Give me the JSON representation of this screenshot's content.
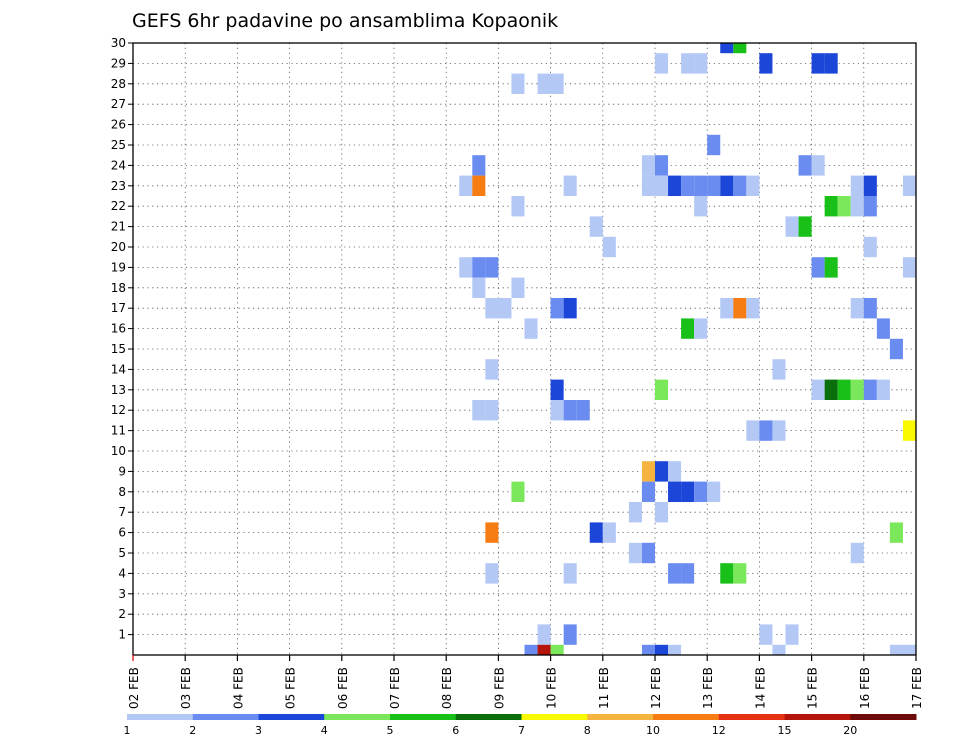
{
  "chart_data": {
    "type": "heatmap",
    "title": "GEFS 6hr padavine po ansamblima Kopaonik",
    "xlabel": "",
    "ylabel": "",
    "x_tick_labels": [
      "02 FEB",
      "03 FEB",
      "04 FEB",
      "05 FEB",
      "06 FEB",
      "07 FEB",
      "08 FEB",
      "09 FEB",
      "10 FEB",
      "11 FEB",
      "12 FEB",
      "13 FEB",
      "14 FEB",
      "15 FEB",
      "16 FEB",
      "17 FEB"
    ],
    "y_tick_labels": [
      "1",
      "2",
      "3",
      "4",
      "5",
      "6",
      "7",
      "8",
      "9",
      "10",
      "11",
      "12",
      "13",
      "14",
      "15",
      "16",
      "17",
      "18",
      "19",
      "20",
      "21",
      "22",
      "23",
      "24",
      "25",
      "26",
      "27",
      "28",
      "29",
      "30"
    ],
    "xlim": [
      0,
      60
    ],
    "ylim": [
      0,
      30
    ],
    "grid": true,
    "legend_position": "bottom",
    "legend": {
      "labels": [
        "1",
        "2",
        "3",
        "4",
        "5",
        "6",
        "7",
        "8",
        "10",
        "12",
        "15",
        "20"
      ],
      "colors": [
        "#b4c8f5",
        "#6a8cf0",
        "#1c46d8",
        "#7ae85a",
        "#18c018",
        "#0a6e0a",
        "#f8f800",
        "#f5b440",
        "#f57d14",
        "#e63214",
        "#b4140a",
        "#6e0a0a"
      ]
    },
    "cells": [
      {
        "x": 45,
        "y": 30,
        "v": 3
      },
      {
        "x": 46,
        "y": 30,
        "v": 5
      },
      {
        "x": 40,
        "y": 29,
        "v": 1
      },
      {
        "x": 42,
        "y": 29,
        "v": 1
      },
      {
        "x": 43,
        "y": 29,
        "v": 1
      },
      {
        "x": 48,
        "y": 29,
        "v": 3
      },
      {
        "x": 52,
        "y": 29,
        "v": 3
      },
      {
        "x": 53,
        "y": 29,
        "v": 3
      },
      {
        "x": 29,
        "y": 28,
        "v": 1
      },
      {
        "x": 31,
        "y": 28,
        "v": 1
      },
      {
        "x": 32,
        "y": 28,
        "v": 1
      },
      {
        "x": 44,
        "y": 25,
        "v": 2
      },
      {
        "x": 26,
        "y": 24,
        "v": 2
      },
      {
        "x": 39,
        "y": 24,
        "v": 1
      },
      {
        "x": 40,
        "y": 24,
        "v": 2
      },
      {
        "x": 51,
        "y": 24,
        "v": 2
      },
      {
        "x": 52,
        "y": 24,
        "v": 1
      },
      {
        "x": 25,
        "y": 23,
        "v": 1
      },
      {
        "x": 26,
        "y": 23,
        "v": 10
      },
      {
        "x": 33,
        "y": 23,
        "v": 1
      },
      {
        "x": 39,
        "y": 23,
        "v": 1
      },
      {
        "x": 40,
        "y": 23,
        "v": 1
      },
      {
        "x": 41,
        "y": 23,
        "v": 3
      },
      {
        "x": 42,
        "y": 23,
        "v": 2
      },
      {
        "x": 43,
        "y": 23,
        "v": 2
      },
      {
        "x": 44,
        "y": 23,
        "v": 2
      },
      {
        "x": 45,
        "y": 23,
        "v": 3
      },
      {
        "x": 46,
        "y": 23,
        "v": 2
      },
      {
        "x": 47,
        "y": 23,
        "v": 1
      },
      {
        "x": 55,
        "y": 23,
        "v": 1
      },
      {
        "x": 56,
        "y": 23,
        "v": 3
      },
      {
        "x": 59,
        "y": 23,
        "v": 1
      },
      {
        "x": 29,
        "y": 22,
        "v": 1
      },
      {
        "x": 43,
        "y": 22,
        "v": 1
      },
      {
        "x": 53,
        "y": 22,
        "v": 5
      },
      {
        "x": 54,
        "y": 22,
        "v": 4
      },
      {
        "x": 55,
        "y": 22,
        "v": 1
      },
      {
        "x": 56,
        "y": 22,
        "v": 2
      },
      {
        "x": 35,
        "y": 21,
        "v": 1
      },
      {
        "x": 50,
        "y": 21,
        "v": 1
      },
      {
        "x": 51,
        "y": 21,
        "v": 5
      },
      {
        "x": 36,
        "y": 20,
        "v": 1
      },
      {
        "x": 56,
        "y": 20,
        "v": 1
      },
      {
        "x": 25,
        "y": 19,
        "v": 1
      },
      {
        "x": 26,
        "y": 19,
        "v": 2
      },
      {
        "x": 27,
        "y": 19,
        "v": 2
      },
      {
        "x": 52,
        "y": 19,
        "v": 2
      },
      {
        "x": 53,
        "y": 19,
        "v": 5
      },
      {
        "x": 59,
        "y": 19,
        "v": 1
      },
      {
        "x": 26,
        "y": 18,
        "v": 1
      },
      {
        "x": 29,
        "y": 18,
        "v": 1
      },
      {
        "x": 27,
        "y": 17,
        "v": 1
      },
      {
        "x": 28,
        "y": 17,
        "v": 1
      },
      {
        "x": 32,
        "y": 17,
        "v": 2
      },
      {
        "x": 33,
        "y": 17,
        "v": 3
      },
      {
        "x": 45,
        "y": 17,
        "v": 1
      },
      {
        "x": 46,
        "y": 17,
        "v": 10
      },
      {
        "x": 47,
        "y": 17,
        "v": 1
      },
      {
        "x": 55,
        "y": 17,
        "v": 1
      },
      {
        "x": 56,
        "y": 17,
        "v": 2
      },
      {
        "x": 30,
        "y": 16,
        "v": 1
      },
      {
        "x": 42,
        "y": 16,
        "v": 5
      },
      {
        "x": 43,
        "y": 16,
        "v": 1
      },
      {
        "x": 57,
        "y": 16,
        "v": 2
      },
      {
        "x": 58,
        "y": 15,
        "v": 2
      },
      {
        "x": 27,
        "y": 14,
        "v": 1
      },
      {
        "x": 49,
        "y": 14,
        "v": 1
      },
      {
        "x": 32,
        "y": 13,
        "v": 3
      },
      {
        "x": 40,
        "y": 13,
        "v": 4
      },
      {
        "x": 52,
        "y": 13,
        "v": 1
      },
      {
        "x": 53,
        "y": 13,
        "v": 6
      },
      {
        "x": 54,
        "y": 13,
        "v": 5
      },
      {
        "x": 55,
        "y": 13,
        "v": 4
      },
      {
        "x": 56,
        "y": 13,
        "v": 2
      },
      {
        "x": 57,
        "y": 13,
        "v": 1
      },
      {
        "x": 26,
        "y": 12,
        "v": 1
      },
      {
        "x": 27,
        "y": 12,
        "v": 1
      },
      {
        "x": 32,
        "y": 12,
        "v": 1
      },
      {
        "x": 33,
        "y": 12,
        "v": 2
      },
      {
        "x": 34,
        "y": 12,
        "v": 2
      },
      {
        "x": 47,
        "y": 11,
        "v": 1
      },
      {
        "x": 48,
        "y": 11,
        "v": 2
      },
      {
        "x": 49,
        "y": 11,
        "v": 1
      },
      {
        "x": 59,
        "y": 11,
        "v": 7
      },
      {
        "x": 39,
        "y": 9,
        "v": 8
      },
      {
        "x": 40,
        "y": 9,
        "v": 3
      },
      {
        "x": 41,
        "y": 9,
        "v": 1
      },
      {
        "x": 29,
        "y": 8,
        "v": 4
      },
      {
        "x": 39,
        "y": 8,
        "v": 2
      },
      {
        "x": 41,
        "y": 8,
        "v": 3
      },
      {
        "x": 42,
        "y": 8,
        "v": 3
      },
      {
        "x": 43,
        "y": 8,
        "v": 2
      },
      {
        "x": 44,
        "y": 8,
        "v": 1
      },
      {
        "x": 38,
        "y": 7,
        "v": 1
      },
      {
        "x": 40,
        "y": 7,
        "v": 1
      },
      {
        "x": 27,
        "y": 6,
        "v": 10
      },
      {
        "x": 35,
        "y": 6,
        "v": 3
      },
      {
        "x": 36,
        "y": 6,
        "v": 1
      },
      {
        "x": 58,
        "y": 6,
        "v": 4
      },
      {
        "x": 38,
        "y": 5,
        "v": 1
      },
      {
        "x": 39,
        "y": 5,
        "v": 2
      },
      {
        "x": 55,
        "y": 5,
        "v": 1
      },
      {
        "x": 27,
        "y": 4,
        "v": 1
      },
      {
        "x": 33,
        "y": 4,
        "v": 1
      },
      {
        "x": 41,
        "y": 4,
        "v": 2
      },
      {
        "x": 42,
        "y": 4,
        "v": 2
      },
      {
        "x": 45,
        "y": 4,
        "v": 5
      },
      {
        "x": 46,
        "y": 4,
        "v": 4
      },
      {
        "x": 31,
        "y": 1,
        "v": 1
      },
      {
        "x": 33,
        "y": 1,
        "v": 2
      },
      {
        "x": 48,
        "y": 1,
        "v": 1
      },
      {
        "x": 50,
        "y": 1,
        "v": 1
      },
      {
        "x": 30,
        "y": 0,
        "v": 2
      },
      {
        "x": 31,
        "y": 0,
        "v": 15
      },
      {
        "x": 32,
        "y": 0,
        "v": 4
      },
      {
        "x": 39,
        "y": 0,
        "v": 2
      },
      {
        "x": 40,
        "y": 0,
        "v": 3
      },
      {
        "x": 41,
        "y": 0,
        "v": 1
      },
      {
        "x": 49,
        "y": 0,
        "v": 1
      },
      {
        "x": 58,
        "y": 0,
        "v": 1
      },
      {
        "x": 59,
        "y": 0,
        "v": 1
      }
    ]
  }
}
